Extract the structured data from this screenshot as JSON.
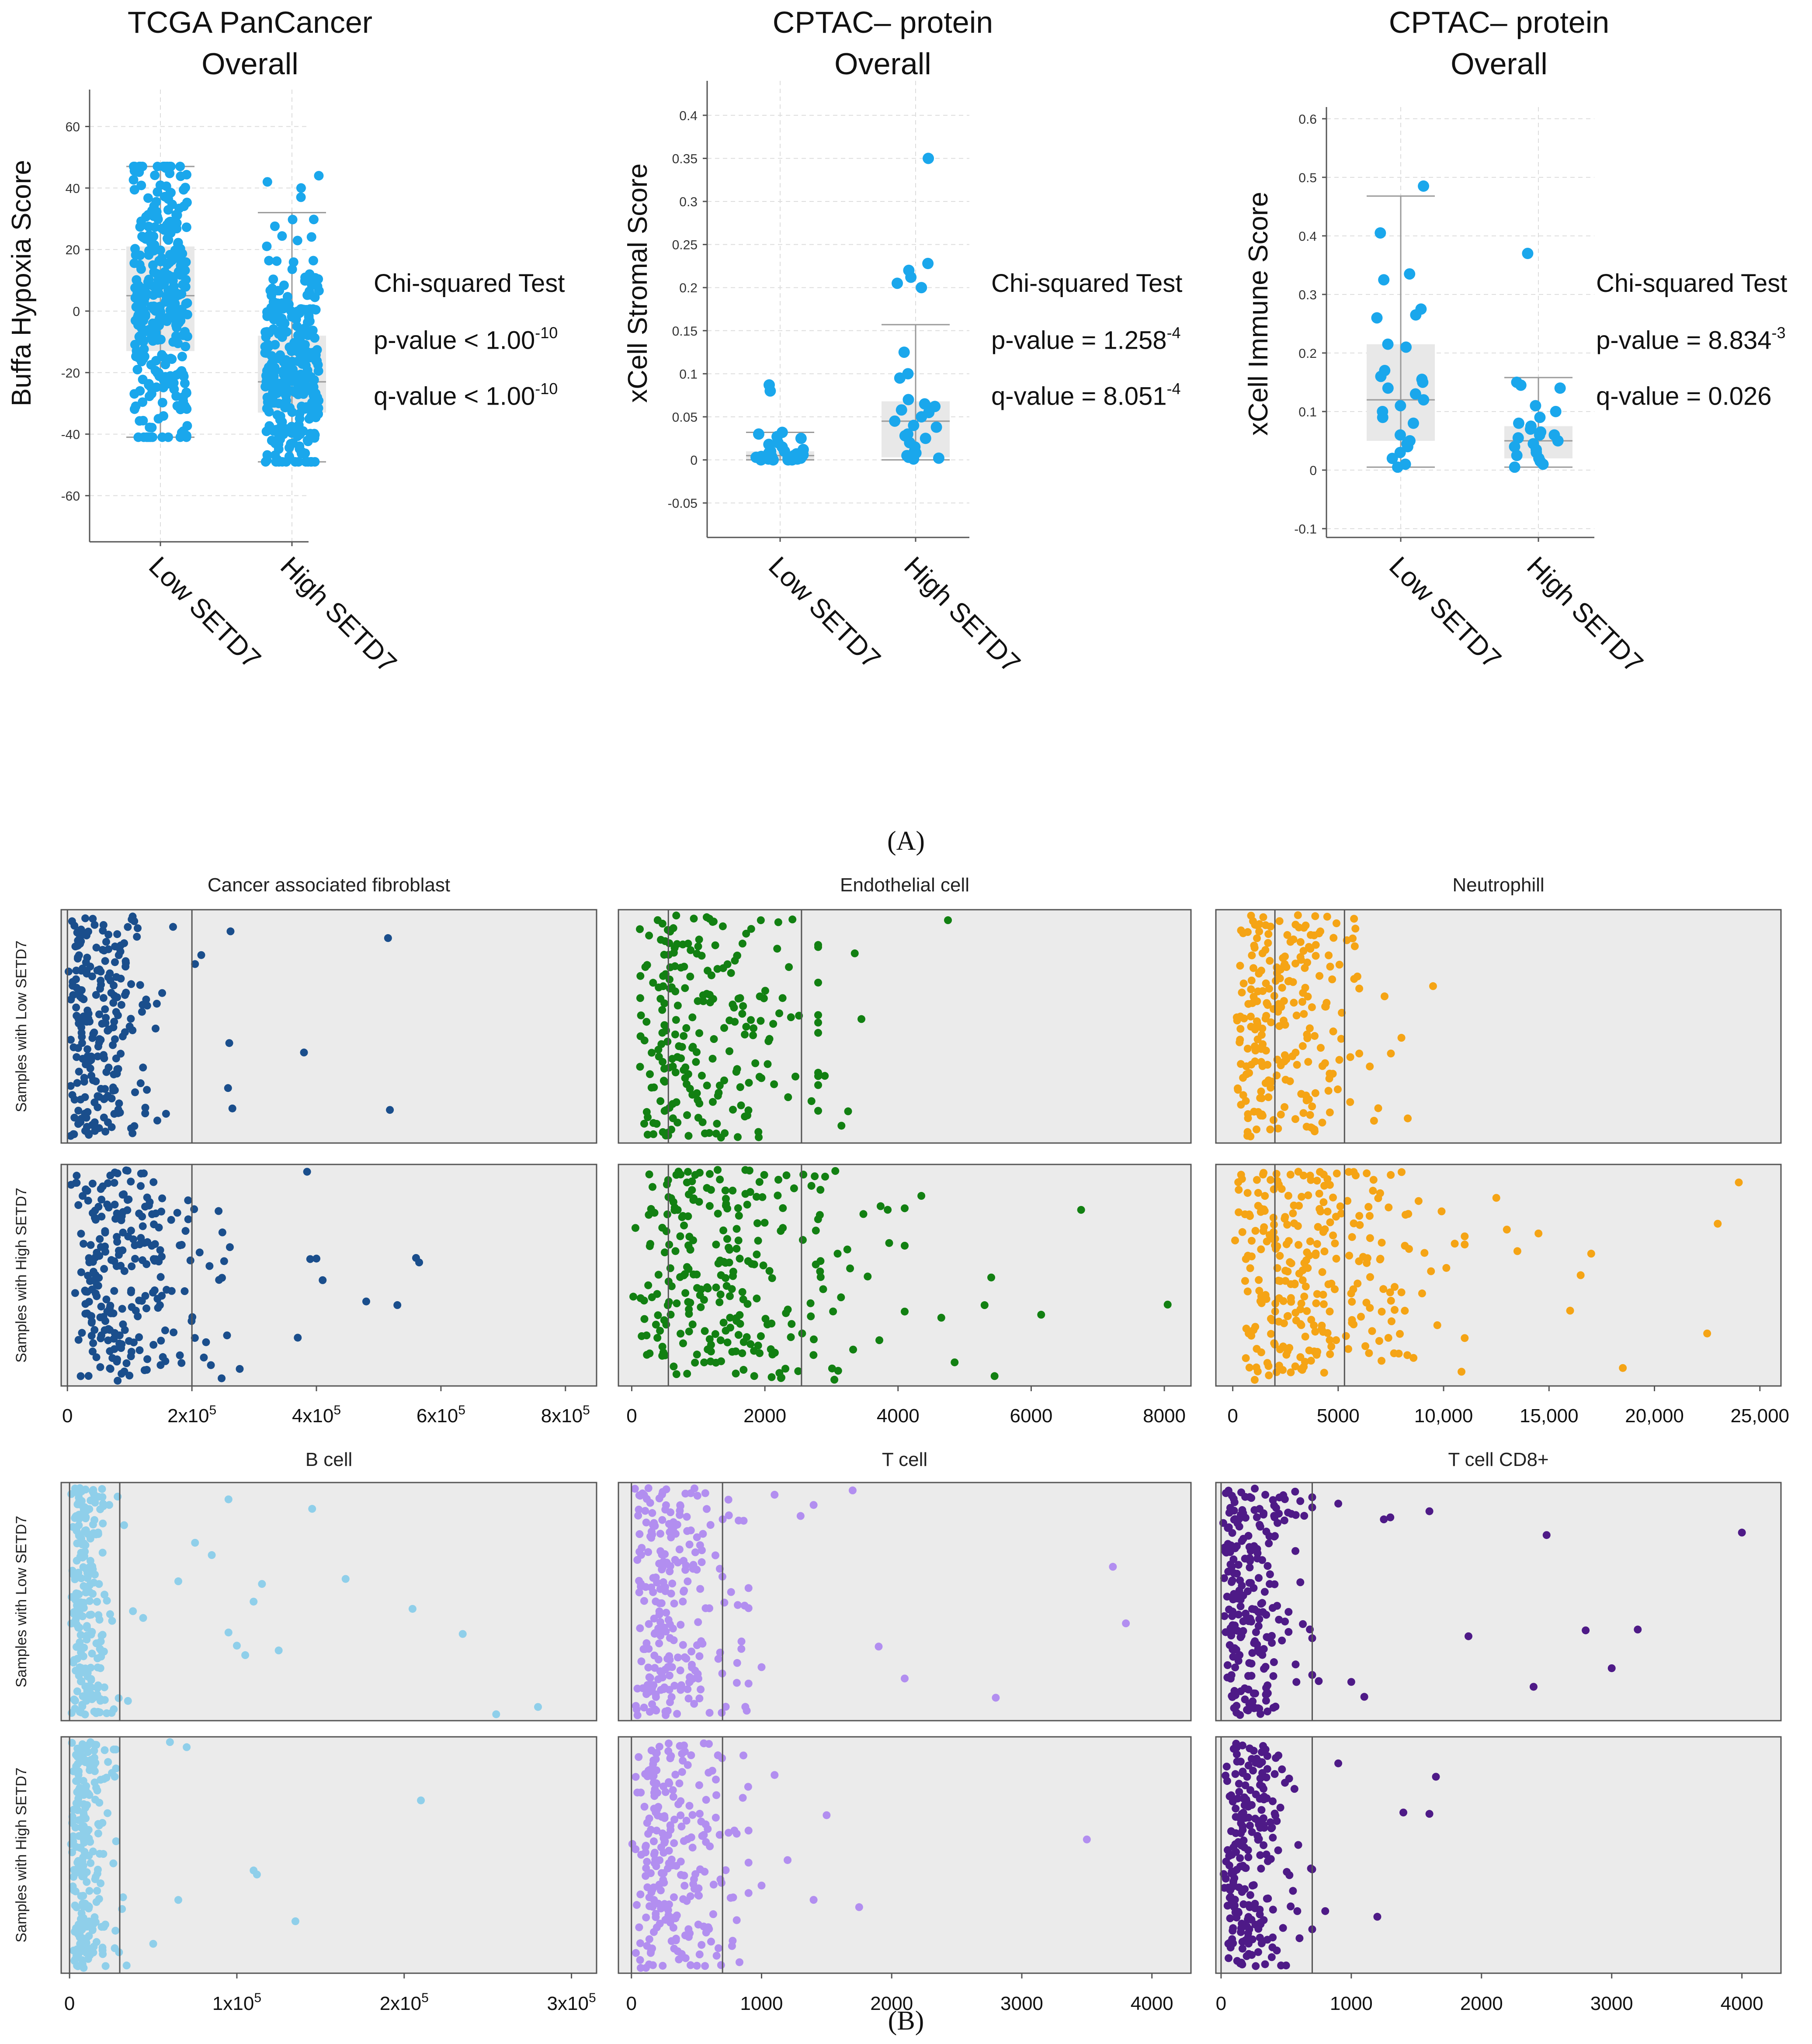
{
  "panel_a_label": "(A)",
  "panel_b_label": "(B)",
  "colors": {
    "box_points": "#1aa7ec",
    "box_fill": "#e8e8e8",
    "panel_bg": "#ebebeb",
    "caf": "#1a4e8c",
    "endothelial": "#128012",
    "neutrophil": "#f5a415",
    "bcell": "#8fcfea",
    "tcell": "#b28ef0",
    "cd8": "#4e1a87"
  },
  "chart_data": [
    {
      "id": "hypoxia",
      "type": "box",
      "title": "TCGA PanCancer Overall",
      "title_lines": [
        "TCGA PanCancer",
        "Overall"
      ],
      "ylabel": "Buffa Hypoxia Score",
      "ylim": [
        -75,
        72
      ],
      "yticks": [
        -60,
        -40,
        -20,
        0,
        20,
        40,
        60
      ],
      "ytick_labels": [
        "-60",
        "-40",
        "-20",
        "0",
        "20",
        "40",
        "60"
      ],
      "categories": [
        "Low SETD7",
        "High SETD7"
      ],
      "groups": [
        {
          "name": "Low SETD7",
          "n": 320,
          "q1": -13,
          "median": 5,
          "q3": 21,
          "whisker_low": -41,
          "whisker_high": 47,
          "spread": "dense"
        },
        {
          "name": "High SETD7",
          "n": 300,
          "q1": -33,
          "median": -23,
          "q3": -8,
          "whisker_low": -49,
          "whisker_high": 32,
          "extra_points": [
            44,
            42,
            40,
            37
          ],
          "spread": "dense"
        }
      ],
      "stats": {
        "test": "Chi-squared Test",
        "p_label": "p-value < 1.00",
        "p_exp": "-10",
        "q_label": "q-value < 1.00",
        "q_exp": "-10"
      }
    },
    {
      "id": "stromal",
      "type": "box",
      "title": "CPTAC– protein Overall",
      "title_lines": [
        "CPTAC– protein",
        "Overall"
      ],
      "ylabel": "xCell Stromal Score",
      "ylim": [
        -0.09,
        0.44
      ],
      "yticks": [
        -0.05,
        0,
        0.05,
        0.1,
        0.15,
        0.2,
        0.25,
        0.3,
        0.35,
        0.4
      ],
      "ytick_labels": [
        "-0.05",
        "0",
        "0.05",
        "0.1",
        "0.15",
        "0.2",
        "0.25",
        "0.3",
        "0.35",
        "0.4"
      ],
      "categories": [
        "Low SETD7",
        "High SETD7"
      ],
      "groups": [
        {
          "name": "Low SETD7",
          "q1": 0,
          "median": 0.005,
          "q3": 0.01,
          "whisker_low": 0,
          "whisker_high": 0.032,
          "points": [
            0.087,
            0.08,
            0.032,
            0.027,
            0.025,
            0.03,
            0.02,
            0.018,
            0.015,
            0.012,
            0.01,
            0.009,
            0.008,
            0.007,
            0.006,
            0.005,
            0.004,
            0.004,
            0.003,
            0.003,
            0.002,
            0.002,
            0.001,
            0.001,
            0.0,
            0.0,
            0.0,
            0.0,
            0.005,
            0.01
          ]
        },
        {
          "name": "High SETD7",
          "q1": 0.003,
          "median": 0.045,
          "q3": 0.068,
          "whisker_low": 0,
          "whisker_high": 0.157,
          "points": [
            0.35,
            0.228,
            0.22,
            0.212,
            0.205,
            0.2,
            0.125,
            0.1,
            0.095,
            0.07,
            0.065,
            0.062,
            0.06,
            0.058,
            0.055,
            0.05,
            0.045,
            0.04,
            0.038,
            0.03,
            0.028,
            0.025,
            0.02,
            0.015,
            0.01,
            0.008,
            0.005,
            0.003,
            0.002,
            0.001
          ]
        }
      ],
      "stats": {
        "test": "Chi-squared Test",
        "p_label": "p-value = 1.258",
        "p_exp": "-4",
        "q_label": "q-value = 8.051",
        "q_exp": "-4"
      }
    },
    {
      "id": "immune",
      "type": "box",
      "title": "CPTAC– protein Overall",
      "title_lines": [
        "CPTAC– protein",
        "Overall"
      ],
      "ylabel": "xCell Immune Score",
      "ylim": [
        -0.115,
        0.62
      ],
      "yticks": [
        -0.1,
        0,
        0.1,
        0.2,
        0.3,
        0.4,
        0.5,
        0.6
      ],
      "ytick_labels": [
        "-0.1",
        "0",
        "0.1",
        "0.2",
        "0.3",
        "0.4",
        "0.5",
        "0.6"
      ],
      "categories": [
        "Low SETD7",
        "High SETD7"
      ],
      "groups": [
        {
          "name": "Low SETD7",
          "q1": 0.05,
          "median": 0.12,
          "q3": 0.215,
          "whisker_low": 0.005,
          "whisker_high": 0.468,
          "points": [
            0.485,
            0.405,
            0.335,
            0.325,
            0.275,
            0.265,
            0.26,
            0.215,
            0.21,
            0.17,
            0.16,
            0.155,
            0.15,
            0.14,
            0.13,
            0.12,
            0.11,
            0.1,
            0.09,
            0.08,
            0.06,
            0.05,
            0.045,
            0.03,
            0.02,
            0.01,
            0.005,
            0.04
          ]
        },
        {
          "name": "High SETD7",
          "q1": 0.02,
          "median": 0.05,
          "q3": 0.075,
          "whisker_low": 0.005,
          "whisker_high": 0.158,
          "points": [
            0.37,
            0.15,
            0.145,
            0.14,
            0.11,
            0.1,
            0.09,
            0.08,
            0.075,
            0.07,
            0.065,
            0.06,
            0.055,
            0.05,
            0.045,
            0.04,
            0.035,
            0.03,
            0.025,
            0.02,
            0.015,
            0.01,
            0.005,
            0.06
          ]
        }
      ],
      "stats": {
        "test": "Chi-squared Test",
        "p_label": "p-value = 8.834",
        "p_exp": "-3",
        "q_label": "q-value = 0.026",
        "q_exp": ""
      }
    },
    {
      "id": "caf",
      "type": "strip",
      "title": "Cancer associated fibroblast",
      "color_key": "caf",
      "xlim": [
        -10000,
        850000
      ],
      "xticks": [
        0,
        200000,
        400000,
        600000,
        800000
      ],
      "xtick_labels": [
        {
          "base": "0",
          "exp": ""
        },
        {
          "base": "2x10",
          "exp": "5"
        },
        {
          "base": "4x10",
          "exp": "5"
        },
        {
          "base": "6x10",
          "exp": "5"
        },
        {
          "base": "8x10",
          "exp": "5"
        }
      ],
      "rows": [
        {
          "label": "Samples with Low SETD7",
          "n": 230,
          "scale": 60000,
          "max": 200000,
          "vlines": [
            0,
            200000
          ],
          "outliers": [
            215000,
            205000,
            260000,
            265000,
            258000,
            262000,
            380000,
            518000,
            515000
          ]
        },
        {
          "label": "Samples with High SETD7",
          "n": 240,
          "scale": 110000,
          "max": 320000,
          "vlines": [
            0,
            200000
          ],
          "outliers": [
            400000,
            410000,
            390000,
            385000,
            480000,
            560000,
            530000,
            565000,
            370000
          ]
        }
      ]
    },
    {
      "id": "endo",
      "type": "strip",
      "title": "Endothelial cell",
      "color_key": "endothelial",
      "xlim": [
        -200,
        8400
      ],
      "xticks": [
        0,
        2000,
        4000,
        6000,
        8000
      ],
      "xtick_labels": [
        {
          "base": "0",
          "exp": ""
        },
        {
          "base": "2000",
          "exp": ""
        },
        {
          "base": "4000",
          "exp": ""
        },
        {
          "base": "6000",
          "exp": ""
        },
        {
          "base": "8000",
          "exp": ""
        }
      ],
      "rows": [
        {
          "label": "Samples with Low SETD7",
          "n": 220,
          "scale": 1300,
          "max": 2800,
          "vlines": [
            550,
            2550
          ],
          "outliers": [
            3250,
            4750,
            3350,
            3450,
            2900,
            3150,
            2700
          ]
        },
        {
          "label": "Samples with High SETD7",
          "n": 260,
          "scale": 1700,
          "max": 4100,
          "vlines": [
            550,
            2550
          ],
          "outliers": [
            4350,
            4650,
            6750,
            8050,
            5450,
            6150,
            4850,
            5300,
            5400
          ]
        }
      ]
    },
    {
      "id": "neut",
      "type": "strip",
      "title": "Neutrophill",
      "color_key": "neutrophil",
      "xlim": [
        -800,
        26000
      ],
      "xticks": [
        0,
        5000,
        10000,
        15000,
        20000,
        25000
      ],
      "xtick_labels": [
        {
          "base": "0",
          "exp": ""
        },
        {
          "base": "5000",
          "exp": ""
        },
        {
          "base": "10,000",
          "exp": ""
        },
        {
          "base": "15,000",
          "exp": ""
        },
        {
          "base": "20,000",
          "exp": ""
        },
        {
          "base": "25,000",
          "exp": ""
        }
      ],
      "rows": [
        {
          "label": "Samples with Low SETD7",
          "n": 230,
          "scale": 2600,
          "max": 6000,
          "vlines": [
            2000,
            5300
          ],
          "outliers": [
            6500,
            7500,
            8000,
            9500,
            7200,
            8300,
            6900,
            6700
          ]
        },
        {
          "label": "Samples with High SETD7",
          "n": 280,
          "scale": 4500,
          "max": 11000,
          "vlines": [
            2000,
            5300
          ],
          "outliers": [
            12500,
            13000,
            14500,
            16000,
            17000,
            18500,
            22500,
            24000,
            23000,
            16500,
            13500
          ]
        }
      ]
    },
    {
      "id": "bcell",
      "type": "strip",
      "title": "B cell",
      "color_key": "bcell",
      "xlim": [
        -5000,
        315000
      ],
      "xticks": [
        0,
        100000,
        200000,
        300000
      ],
      "xtick_labels": [
        {
          "base": "0",
          "exp": ""
        },
        {
          "base": "1x10",
          "exp": "5"
        },
        {
          "base": "2x10",
          "exp": "5"
        },
        {
          "base": "3x10",
          "exp": "5"
        }
      ],
      "rows": [
        {
          "label": "Samples with Low SETD7",
          "n": 220,
          "scale": 14000,
          "max": 60000,
          "vlines": [
            0,
            30000
          ],
          "outliers": [
            65000,
            75000,
            85000,
            95000,
            105000,
            115000,
            125000,
            145000,
            165000,
            205000,
            235000,
            255000,
            280000,
            100000,
            110000,
            95000
          ]
        },
        {
          "label": "Samples with High SETD7",
          "n": 220,
          "scale": 12000,
          "max": 45000,
          "vlines": [
            0,
            30000
          ],
          "outliers": [
            50000,
            60000,
            70000,
            110000,
            112000,
            135000,
            210000,
            65000
          ]
        }
      ]
    },
    {
      "id": "tcell",
      "type": "strip",
      "title": "T cell",
      "color_key": "tcell",
      "xlim": [
        -100,
        4300
      ],
      "xticks": [
        0,
        1000,
        2000,
        3000,
        4000
      ],
      "xtick_labels": [
        {
          "base": "0",
          "exp": ""
        },
        {
          "base": "1000",
          "exp": ""
        },
        {
          "base": "2000",
          "exp": ""
        },
        {
          "base": "3000",
          "exp": ""
        },
        {
          "base": "4000",
          "exp": ""
        }
      ],
      "rows": [
        {
          "label": "Samples with Low SETD7",
          "n": 240,
          "scale": 380,
          "max": 900,
          "vlines": [
            0,
            700
          ],
          "outliers": [
            1000,
            1100,
            1300,
            1400,
            1900,
            2100,
            2800,
            3700,
            3800,
            1700
          ]
        },
        {
          "label": "Samples with High SETD7",
          "n": 240,
          "scale": 380,
          "max": 900,
          "vlines": [
            0,
            700
          ],
          "outliers": [
            1000,
            1100,
            1200,
            1400,
            1500,
            1750,
            3500
          ]
        }
      ]
    },
    {
      "id": "cd8",
      "type": "strip",
      "title": "T cell CD8+",
      "color_key": "cd8",
      "xlim": [
        -40,
        4300
      ],
      "xticks": [
        0,
        1000,
        2000,
        3000,
        4000
      ],
      "xtick_labels": [
        {
          "base": "0",
          "exp": ""
        },
        {
          "base": "1000",
          "exp": ""
        },
        {
          "base": "2000",
          "exp": ""
        },
        {
          "base": "3000",
          "exp": ""
        },
        {
          "base": "4000",
          "exp": ""
        }
      ],
      "rows": [
        {
          "label": "Samples with Low SETD7",
          "n": 230,
          "scale": 280,
          "max": 700,
          "vlines": [
            0,
            700
          ],
          "outliers": [
            750,
            900,
            1000,
            1100,
            1300,
            1600,
            1900,
            2400,
            2500,
            2800,
            3000,
            3200,
            4000,
            1250
          ]
        },
        {
          "label": "Samples with High SETD7",
          "n": 230,
          "scale": 260,
          "max": 700,
          "vlines": [
            0,
            700
          ],
          "outliers": [
            800,
            900,
            1200,
            1400,
            1600,
            1650
          ]
        }
      ]
    }
  ]
}
